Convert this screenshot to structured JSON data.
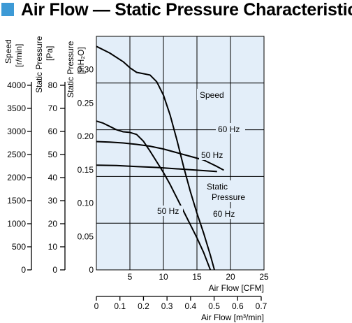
{
  "title": "Air Flow — Static Pressure Characteristics",
  "chart_data": {
    "type": "line",
    "title": "Air Flow — Static Pressure Characteristics",
    "speed_axis": {
      "label": "Speed",
      "unit": "[r/min]",
      "ticks": [
        "0",
        "500",
        "1000",
        "1500",
        "2000",
        "2500",
        "3000",
        "3500",
        "4000"
      ],
      "range": [
        0,
        4000
      ]
    },
    "pa_axis": {
      "label": "Static Pressure",
      "unit": "[Pa]",
      "ticks": [
        "0",
        "10",
        "20",
        "30",
        "40",
        "50",
        "60",
        "70",
        "80"
      ],
      "range": [
        0,
        80
      ]
    },
    "inh2o_axis": {
      "label": "Static Pressure",
      "unit": "[inH₂O]",
      "ticks": [
        "0",
        "0.05",
        "0.10",
        "0.15",
        "0.20",
        "0.25",
        "0.30"
      ],
      "range": [
        0,
        0.35
      ]
    },
    "cfm_axis": {
      "label": "Air Flow [CFM]",
      "ticks": [
        "5",
        "10",
        "15",
        "20",
        "25"
      ],
      "range": [
        0,
        25
      ]
    },
    "m3_axis": {
      "label": "Air Flow [m³/min]",
      "ticks": [
        "0",
        "0.1",
        "0.2",
        "0.3",
        "0.4",
        "0.5",
        "0.6",
        "0.7"
      ],
      "range": [
        0,
        0.7
      ]
    },
    "annotations": {
      "speed": "Speed",
      "static_pressure_line1": "Static",
      "static_pressure_line2": "Pressure",
      "speed_60": "60 Hz",
      "speed_50": "50 Hz",
      "pressure_50": "50 Hz",
      "pressure_60": "60 Hz"
    },
    "grid": true,
    "series": [
      {
        "name": "Speed 60 Hz",
        "axis": "speed",
        "x": [
          0,
          2,
          4,
          6,
          8,
          10,
          12,
          14,
          16,
          17,
          18,
          19
        ],
        "y": [
          2780,
          2770,
          2750,
          2720,
          2680,
          2620,
          2540,
          2460,
          2380,
          2310,
          2240,
          2160
        ]
      },
      {
        "name": "Speed 50 Hz",
        "axis": "speed",
        "x": [
          0,
          3,
          6,
          9,
          12,
          15,
          18
        ],
        "y": [
          2270,
          2260,
          2240,
          2220,
          2190,
          2160,
          2130
        ]
      },
      {
        "name": "Static Pressure 60 Hz",
        "axis": "inh2o",
        "x": [
          0,
          2,
          4,
          5,
          6,
          7,
          8,
          9,
          10,
          11,
          12,
          13,
          14,
          15,
          16,
          17,
          17.6
        ],
        "y": [
          0.335,
          0.325,
          0.312,
          0.303,
          0.296,
          0.294,
          0.292,
          0.282,
          0.262,
          0.232,
          0.195,
          0.155,
          0.118,
          0.085,
          0.055,
          0.022,
          0
        ]
      },
      {
        "name": "Static Pressure 50 Hz",
        "axis": "inh2o",
        "x": [
          0,
          1,
          2,
          3,
          4,
          5,
          6,
          7,
          8,
          9,
          10,
          11,
          12,
          13,
          14,
          15,
          16,
          17
        ],
        "y": [
          0.223,
          0.22,
          0.215,
          0.21,
          0.207,
          0.206,
          0.203,
          0.193,
          0.178,
          0.162,
          0.146,
          0.128,
          0.108,
          0.088,
          0.068,
          0.048,
          0.026,
          0
        ]
      }
    ]
  }
}
